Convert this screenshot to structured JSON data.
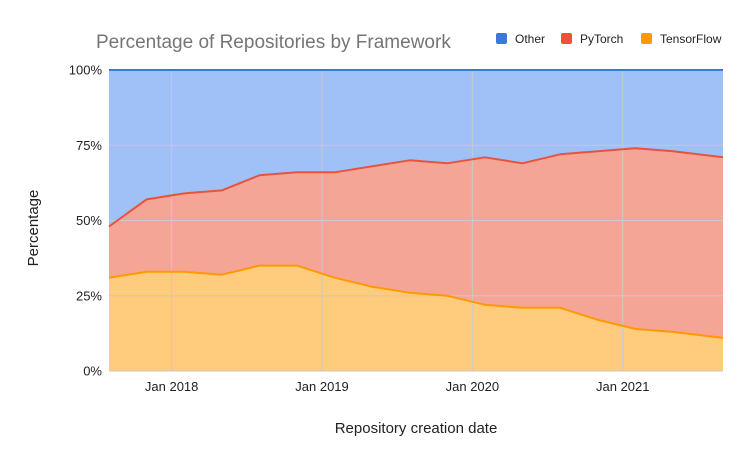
{
  "chart_data": {
    "type": "area",
    "stacked": true,
    "stack_mode": "percent",
    "title": "Percentage of Repositories by Framework",
    "xlabel": "Repository creation date",
    "ylabel": "Percentage",
    "ylim": [
      0,
      100
    ],
    "y_ticks": [
      "0%",
      "25%",
      "50%",
      "75%",
      "100%"
    ],
    "y_tick_values": [
      0,
      25,
      50,
      75,
      100
    ],
    "x_ticks": [
      "Jan 2018",
      "Jan 2019",
      "Jan 2020",
      "Jan 2021"
    ],
    "x_tick_values": [
      "2018-01",
      "2019-01",
      "2020-01",
      "2021-01"
    ],
    "x_range": [
      "2017-08",
      "2021-09"
    ],
    "legend_position": "top-right",
    "grid": true,
    "x": [
      "2017-08",
      "2017-11",
      "2018-02",
      "2018-05",
      "2018-08",
      "2018-11",
      "2019-02",
      "2019-05",
      "2019-08",
      "2019-11",
      "2020-02",
      "2020-05",
      "2020-08",
      "2020-11",
      "2021-02",
      "2021-05",
      "2021-09"
    ],
    "series": [
      {
        "name": "TensorFlow",
        "color": "#ff9900",
        "fill": "#ffcb7d",
        "values": [
          31,
          33,
          33,
          32,
          35,
          35,
          31,
          28,
          26,
          25,
          22,
          21,
          21,
          17,
          14,
          13,
          11
        ]
      },
      {
        "name": "PyTorch",
        "color": "#e8533c",
        "fill": "#f5a596",
        "values": [
          17,
          24,
          26,
          28,
          30,
          31,
          35,
          40,
          44,
          44,
          49,
          48,
          51,
          56,
          60,
          60,
          60
        ]
      },
      {
        "name": "Other",
        "color": "#3d78d8",
        "fill": "#a0c1f7",
        "values": [
          52,
          43,
          41,
          40,
          35,
          34,
          34,
          32,
          30,
          31,
          29,
          31,
          28,
          27,
          26,
          27,
          29
        ]
      }
    ],
    "legend_order": [
      "Other",
      "PyTorch",
      "TensorFlow"
    ]
  }
}
